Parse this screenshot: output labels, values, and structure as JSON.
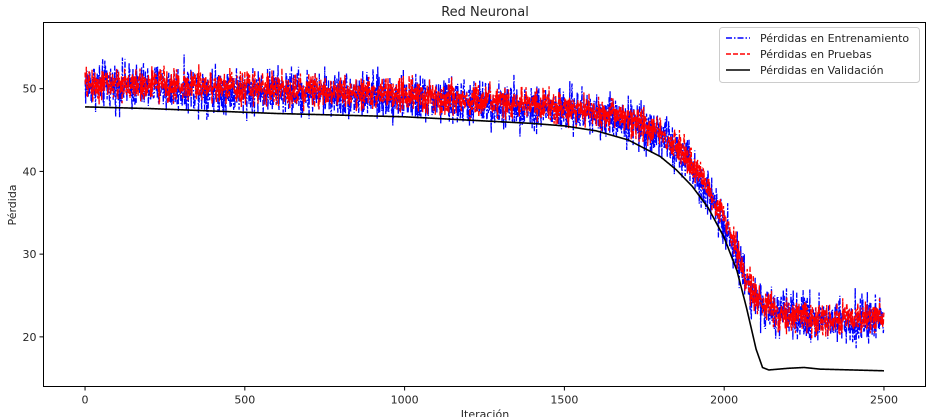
{
  "chart_data": {
    "type": "line",
    "title": "Red Neuronal",
    "xlabel": "Iteración",
    "ylabel": "Pérdida",
    "xlim": [
      -130,
      2630
    ],
    "ylim": [
      14,
      58
    ],
    "xticks": [
      0,
      500,
      1000,
      1500,
      2000,
      2500
    ],
    "yticks": [
      20,
      30,
      40,
      50
    ],
    "grid": false,
    "legend_position": "top-right",
    "series": [
      {
        "name": "Pérdidas en Entrenamiento",
        "color": "#0000ff",
        "style": "dashdot",
        "noise_amplitude": 4.2,
        "trend": [
          [
            0,
            50.5
          ],
          [
            200,
            50.2
          ],
          [
            500,
            49.8
          ],
          [
            800,
            49.3
          ],
          [
            1000,
            48.9
          ],
          [
            1200,
            48.3
          ],
          [
            1400,
            47.8
          ],
          [
            1600,
            47.0
          ],
          [
            1700,
            46.2
          ],
          [
            1800,
            44.5
          ],
          [
            1900,
            40.5
          ],
          [
            1950,
            37.5
          ],
          [
            2000,
            34.0
          ],
          [
            2050,
            28.5
          ],
          [
            2100,
            24.5
          ],
          [
            2150,
            22.8
          ],
          [
            2200,
            22.5
          ],
          [
            2300,
            22.2
          ],
          [
            2400,
            22.1
          ],
          [
            2500,
            22.0
          ]
        ]
      },
      {
        "name": "Pérdidas en Pruebas",
        "color": "#ff0000",
        "style": "dashed",
        "noise_amplitude": 3.0,
        "trend": [
          [
            0,
            50.5
          ],
          [
            200,
            50.5
          ],
          [
            500,
            50.2
          ],
          [
            800,
            49.7
          ],
          [
            1000,
            49.2
          ],
          [
            1200,
            48.6
          ],
          [
            1400,
            48.0
          ],
          [
            1600,
            47.2
          ],
          [
            1700,
            46.5
          ],
          [
            1800,
            44.8
          ],
          [
            1900,
            41.0
          ],
          [
            1950,
            38.0
          ],
          [
            2000,
            34.5
          ],
          [
            2050,
            29.0
          ],
          [
            2100,
            24.8
          ],
          [
            2150,
            23.0
          ],
          [
            2200,
            22.6
          ],
          [
            2300,
            22.3
          ],
          [
            2400,
            22.2
          ],
          [
            2500,
            22.2
          ]
        ]
      },
      {
        "name": "Pérdidas en Validación",
        "color": "#000000",
        "style": "solid",
        "noise_amplitude": 0.0,
        "trend": [
          [
            0,
            47.8
          ],
          [
            200,
            47.6
          ],
          [
            400,
            47.3
          ],
          [
            600,
            47.0
          ],
          [
            800,
            46.8
          ],
          [
            1000,
            46.6
          ],
          [
            1200,
            46.2
          ],
          [
            1400,
            45.8
          ],
          [
            1500,
            45.5
          ],
          [
            1600,
            44.9
          ],
          [
            1700,
            43.8
          ],
          [
            1800,
            41.8
          ],
          [
            1850,
            40.2
          ],
          [
            1900,
            38.2
          ],
          [
            1950,
            35.6
          ],
          [
            2000,
            32.0
          ],
          [
            2040,
            28.0
          ],
          [
            2070,
            23.5
          ],
          [
            2100,
            18.5
          ],
          [
            2120,
            16.3
          ],
          [
            2140,
            16.0
          ],
          [
            2200,
            16.2
          ],
          [
            2250,
            16.3
          ],
          [
            2300,
            16.1
          ],
          [
            2400,
            16.0
          ],
          [
            2500,
            15.9
          ]
        ]
      }
    ]
  }
}
